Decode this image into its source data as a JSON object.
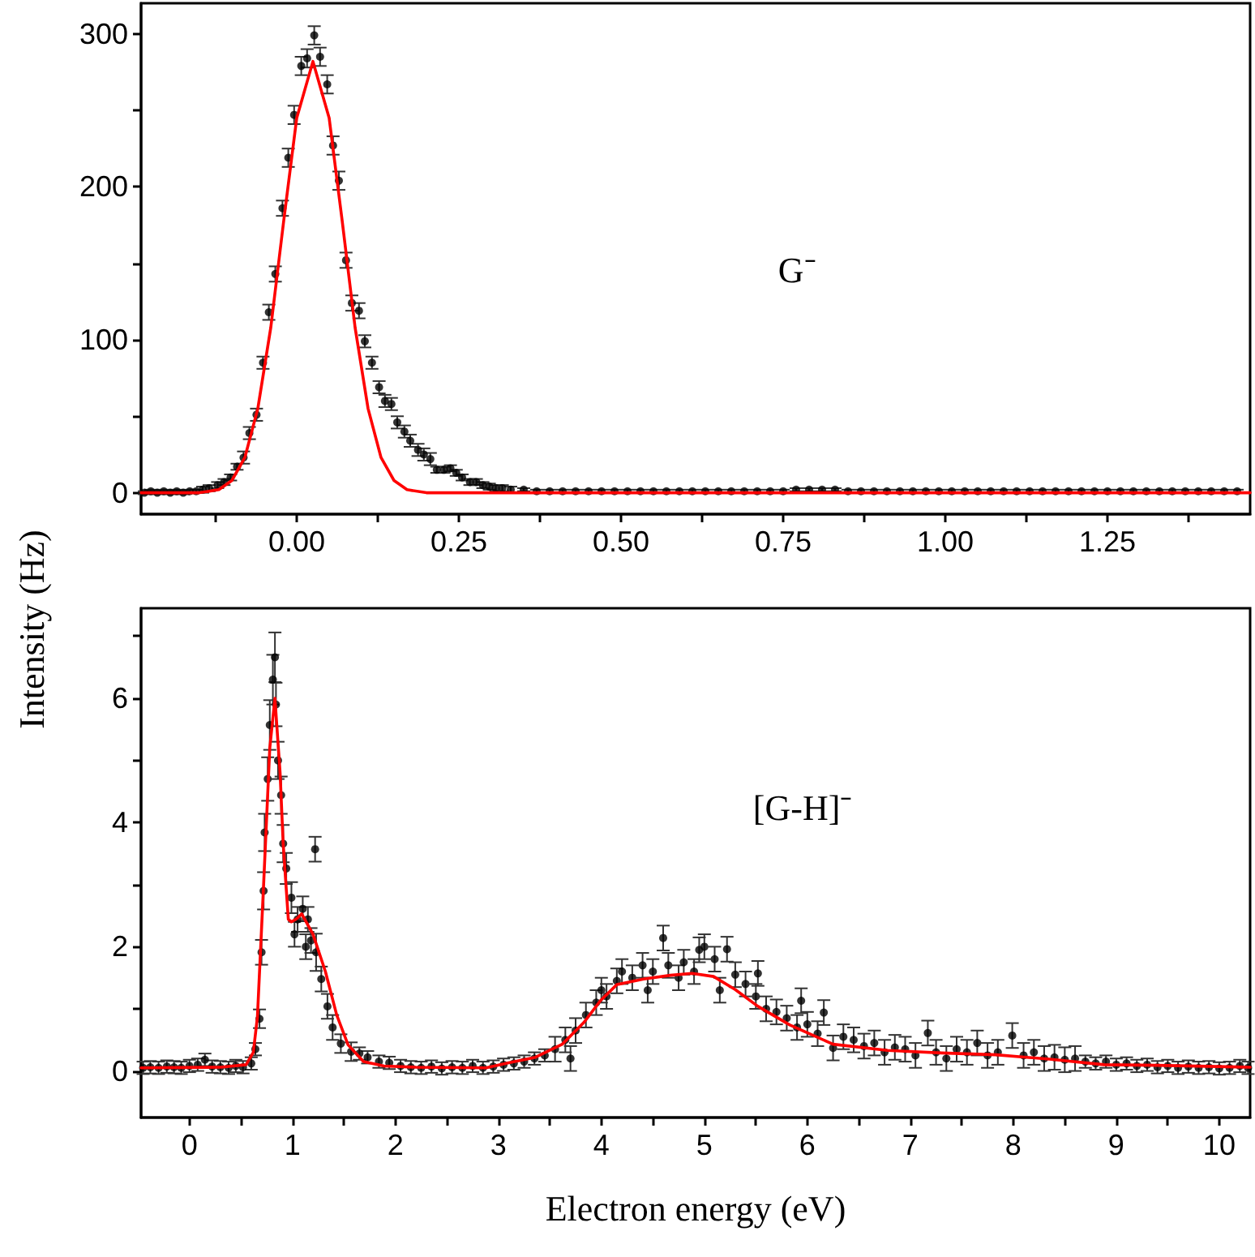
{
  "chart_data": [
    {
      "type": "scatter",
      "ylabel": "Intensity (Hz)",
      "annotations": [
        "G⁻"
      ],
      "xlim": [
        -0.24,
        1.47
      ],
      "ylim": [
        -14,
        320
      ],
      "xticks": [
        {
          "value": -0.125,
          "label": null
        },
        {
          "value": 0,
          "label": "0.00"
        },
        {
          "value": 0.125,
          "label": null
        },
        {
          "value": 0.25,
          "label": "0.25"
        },
        {
          "value": 0.375,
          "label": null
        },
        {
          "value": 0.5,
          "label": "0.50"
        },
        {
          "value": 0.625,
          "label": null
        },
        {
          "value": 0.75,
          "label": "0.75"
        },
        {
          "value": 0.875,
          "label": null
        },
        {
          "value": 1,
          "label": "1.00"
        },
        {
          "value": 1.125,
          "label": null
        },
        {
          "value": 1.25,
          "label": "1.25"
        },
        {
          "value": 1.375,
          "label": null
        }
      ],
      "yticks": [
        0,
        {
          "value": 50,
          "label": null
        },
        100,
        {
          "value": 150,
          "label": null
        },
        200,
        {
          "value": 250,
          "label": null
        },
        300
      ],
      "grid": false,
      "series": [
        {
          "type": "scatter",
          "marker": "circle",
          "color": "#000000",
          "x": [
            -0.235,
            -0.225,
            -0.215,
            -0.205,
            -0.195,
            -0.185,
            -0.175,
            -0.165,
            -0.155,
            -0.145,
            -0.135,
            -0.122,
            -0.112,
            -0.102,
            -0.092,
            -0.082,
            -0.073,
            -0.062,
            -0.052,
            -0.043,
            -0.033,
            -0.022,
            -0.013,
            -0.004,
            0.007,
            0.016,
            0.027,
            0.036,
            0.047,
            0.056,
            0.065,
            0.076,
            0.085,
            0.096,
            0.105,
            0.116,
            0.127,
            0.136,
            0.146,
            0.155,
            0.166,
            0.175,
            0.187,
            0.196,
            0.206,
            0.216,
            0.227,
            0.237,
            0.246,
            0.255,
            0.267,
            0.277,
            0.287,
            0.297,
            0.307,
            0.317,
            0.33,
            0.35,
            0.37,
            0.39,
            0.41,
            0.43,
            0.45,
            0.47,
            0.49,
            0.51,
            0.53,
            0.55,
            0.57,
            0.59,
            0.61,
            0.63,
            0.65,
            0.67,
            0.69,
            0.71,
            0.73,
            0.75,
            0.77,
            0.79,
            0.81,
            0.83,
            0.85,
            0.87,
            0.89,
            0.91,
            0.93,
            0.95,
            0.97,
            0.99,
            1.01,
            1.03,
            1.05,
            1.07,
            1.09,
            1.11,
            1.13,
            1.15,
            1.17,
            1.19,
            1.21,
            1.23,
            1.25,
            1.27,
            1.29,
            1.31,
            1.33,
            1.35,
            1.37,
            1.39,
            1.41,
            1.43,
            1.45
          ],
          "values": [
            0,
            1,
            0,
            1,
            0,
            1,
            0,
            1,
            1,
            2,
            3,
            5,
            7,
            10,
            17,
            23,
            39,
            51,
            85,
            118,
            143,
            186,
            219,
            247,
            279,
            284,
            299,
            285,
            267,
            227,
            204,
            152,
            124,
            119,
            99,
            85,
            69,
            60,
            58,
            46,
            40,
            34,
            28,
            25,
            22,
            15,
            15,
            16,
            13,
            10,
            7,
            7,
            5,
            4,
            3,
            3,
            2,
            2,
            1,
            1,
            1,
            1,
            1,
            1,
            1,
            1,
            1,
            1,
            1,
            1,
            1,
            1,
            1,
            1,
            1,
            1,
            1,
            1,
            2,
            2,
            2,
            2,
            1,
            1,
            1,
            1,
            1,
            1,
            1,
            1,
            1,
            1,
            1,
            1,
            1,
            1,
            1,
            1,
            1,
            1,
            1,
            1,
            1,
            1,
            1,
            1,
            1,
            1,
            1,
            1,
            1,
            1,
            1
          ],
          "errors": [
            1,
            1,
            1,
            1,
            1,
            1,
            1,
            1,
            1,
            2,
            2,
            2,
            2,
            2,
            2,
            4,
            4,
            4,
            4,
            5,
            5,
            5,
            6,
            6,
            6,
            6,
            6,
            6,
            6,
            6,
            6,
            5,
            5,
            5,
            4,
            4,
            4,
            4,
            4,
            4,
            4,
            4,
            4,
            4,
            4,
            2,
            2,
            2,
            2,
            2,
            2,
            2,
            2,
            2,
            2,
            2,
            2,
            1,
            1,
            1,
            1,
            1,
            1,
            1,
            1,
            1,
            1,
            1,
            1,
            1,
            1,
            1,
            1,
            1,
            1,
            1,
            1,
            1,
            1,
            1,
            1,
            1,
            1,
            1,
            1,
            1,
            1,
            1,
            1,
            1,
            1,
            1,
            1,
            1,
            1,
            1,
            1,
            1,
            1,
            1,
            1,
            1,
            1,
            1,
            1,
            1,
            1,
            1,
            1,
            1,
            1,
            1,
            1
          ]
        },
        {
          "type": "line",
          "color": "#ff0000",
          "line_style": "solid",
          "x": [
            -0.24,
            -0.2,
            -0.15,
            -0.12,
            -0.1,
            -0.08,
            -0.06,
            -0.04,
            -0.02,
            0,
            0.025,
            0.05,
            0.07,
            0.09,
            0.11,
            0.13,
            0.15,
            0.17,
            0.2,
            0.3,
            0.6,
            1.0,
            1.47
          ],
          "values": [
            0,
            0,
            0,
            2,
            8,
            23,
            55,
            108,
            178,
            245,
            282,
            245,
            178,
            108,
            55,
            23,
            8,
            2,
            0,
            0,
            0,
            0,
            0
          ]
        }
      ]
    },
    {
      "type": "scatter",
      "xlabel": "Electron energy (eV)",
      "annotations": [
        "[G-H]⁻"
      ],
      "xlim": [
        -0.47,
        10.3
      ],
      "ylim": [
        -0.75,
        7.45
      ],
      "xticks": [
        0,
        {
          "value": 0.5,
          "label": null
        },
        1,
        {
          "value": 1.5,
          "label": null
        },
        2,
        {
          "value": 2.5,
          "label": null
        },
        3,
        {
          "value": 3.5,
          "label": null
        },
        4,
        {
          "value": 4.5,
          "label": null
        },
        5,
        {
          "value": 5.5,
          "label": null
        },
        6,
        {
          "value": 6.5,
          "label": null
        },
        7,
        {
          "value": 7.5,
          "label": null
        },
        8,
        {
          "value": 8.5,
          "label": null
        },
        9,
        {
          "value": 9.5,
          "label": null
        },
        10
      ],
      "yticks": [
        0,
        {
          "value": 1,
          "label": null
        },
        2,
        {
          "value": 3,
          "label": null
        },
        4,
        {
          "value": 5,
          "label": null
        },
        6,
        {
          "value": 7,
          "label": null
        }
      ],
      "grid": false,
      "series": [
        {
          "type": "scatter",
          "marker": "circle",
          "color": "#000000",
          "x": [
            -0.45,
            -0.38,
            -0.3,
            -0.22,
            -0.15,
            -0.08,
            0,
            0.08,
            0.15,
            0.22,
            0.3,
            0.38,
            0.45,
            0.52,
            0.6,
            0.64,
            0.68,
            0.7,
            0.72,
            0.73,
            0.76,
            0.78,
            0.81,
            0.83,
            0.84,
            0.86,
            0.89,
            0.91,
            0.94,
            0.99,
            1.02,
            1.05,
            1.1,
            1.13,
            1.15,
            1.18,
            1.22,
            1.23,
            1.28,
            1.34,
            1.39,
            1.47,
            1.57,
            1.65,
            1.73,
            1.84,
            1.94,
            2.05,
            2.15,
            2.25,
            2.35,
            2.45,
            2.55,
            2.65,
            2.75,
            2.85,
            2.95,
            3.05,
            3.15,
            3.25,
            3.35,
            3.45,
            3.55,
            3.65,
            3.7,
            3.75,
            3.85,
            3.95,
            4.0,
            4.05,
            4.15,
            4.2,
            4.3,
            4.4,
            4.45,
            4.5,
            4.6,
            4.65,
            4.75,
            4.8,
            4.9,
            4.95,
            5.0,
            5.1,
            5.15,
            5.22,
            5.3,
            5.4,
            5.5,
            5.52,
            5.6,
            5.7,
            5.8,
            5.9,
            5.94,
            6.0,
            6.1,
            6.16,
            6.25,
            6.35,
            6.45,
            6.55,
            6.65,
            6.75,
            6.85,
            6.95,
            7.05,
            7.17,
            7.25,
            7.35,
            7.45,
            7.55,
            7.65,
            7.75,
            7.85,
            7.99,
            8.1,
            8.2,
            8.3,
            8.4,
            8.5,
            8.6,
            8.7,
            8.8,
            8.9,
            9.0,
            9.1,
            9.2,
            9.3,
            9.4,
            9.5,
            9.6,
            9.7,
            9.8,
            9.9,
            10.0,
            10.1,
            10.2,
            10.28
          ],
          "values": [
            0.05,
            0.06,
            0.05,
            0.07,
            0.06,
            0.05,
            0.08,
            0.1,
            0.18,
            0.07,
            0.06,
            0.05,
            0.08,
            0.06,
            0.12,
            0.35,
            0.84,
            1.91,
            2.9,
            3.84,
            4.7,
            5.57,
            6.3,
            6.66,
            5.9,
            5.0,
            4.44,
            3.66,
            3.26,
            2.79,
            2.2,
            2.44,
            2.61,
            2.0,
            2.44,
            2.1,
            3.57,
            1.91,
            1.48,
            1.04,
            0.7,
            0.44,
            0.31,
            0.28,
            0.22,
            0.15,
            0.13,
            0.08,
            0.06,
            0.05,
            0.07,
            0.04,
            0.06,
            0.05,
            0.08,
            0.05,
            0.07,
            0.1,
            0.12,
            0.15,
            0.2,
            0.25,
            0.35,
            0.5,
            0.2,
            0.65,
            0.9,
            1.1,
            1.3,
            1.2,
            1.45,
            1.6,
            1.5,
            1.7,
            1.3,
            1.6,
            2.14,
            1.7,
            1.5,
            1.75,
            1.6,
            1.95,
            2.0,
            1.8,
            1.3,
            1.96,
            1.55,
            1.4,
            1.2,
            1.57,
            1.0,
            0.95,
            0.85,
            0.7,
            1.13,
            0.75,
            0.6,
            0.94,
            0.37,
            0.55,
            0.5,
            0.4,
            0.45,
            0.3,
            0.38,
            0.35,
            0.25,
            0.61,
            0.3,
            0.2,
            0.35,
            0.3,
            0.45,
            0.25,
            0.3,
            0.57,
            0.25,
            0.3,
            0.2,
            0.22,
            0.18,
            0.2,
            0.15,
            0.12,
            0.15,
            0.1,
            0.12,
            0.08,
            0.1,
            0.06,
            0.08,
            0.05,
            0.07,
            0.05,
            0.06,
            0.04,
            0.05,
            0.08,
            0.05
          ],
          "errors": [
            0.1,
            0.1,
            0.1,
            0.1,
            0.1,
            0.1,
            0.1,
            0.1,
            0.1,
            0.1,
            0.1,
            0.1,
            0.1,
            0.1,
            0.1,
            0.1,
            0.15,
            0.2,
            0.3,
            0.3,
            0.35,
            0.4,
            0.4,
            0.4,
            0.35,
            0.3,
            0.3,
            0.3,
            0.25,
            0.25,
            0.2,
            0.2,
            0.2,
            0.2,
            0.2,
            0.2,
            0.2,
            0.3,
            0.2,
            0.2,
            0.2,
            0.15,
            0.15,
            0.1,
            0.1,
            0.1,
            0.1,
            0.1,
            0.1,
            0.1,
            0.1,
            0.1,
            0.1,
            0.1,
            0.1,
            0.1,
            0.1,
            0.1,
            0.1,
            0.1,
            0.1,
            0.1,
            0.2,
            0.2,
            0.2,
            0.2,
            0.2,
            0.2,
            0.2,
            0.2,
            0.2,
            0.2,
            0.2,
            0.2,
            0.2,
            0.2,
            0.2,
            0.2,
            0.2,
            0.2,
            0.2,
            0.2,
            0.2,
            0.2,
            0.2,
            0.2,
            0.2,
            0.2,
            0.2,
            0.2,
            0.2,
            0.2,
            0.2,
            0.2,
            0.2,
            0.2,
            0.2,
            0.2,
            0.2,
            0.2,
            0.2,
            0.2,
            0.2,
            0.2,
            0.2,
            0.2,
            0.2,
            0.2,
            0.2,
            0.2,
            0.2,
            0.2,
            0.2,
            0.2,
            0.2,
            0.2,
            0.2,
            0.2,
            0.2,
            0.2,
            0.2,
            0.2,
            0.1,
            0.1,
            0.1,
            0.1,
            0.1,
            0.1,
            0.1,
            0.1,
            0.1,
            0.1,
            0.1,
            0.1,
            0.1,
            0.1,
            0.1,
            0.1,
            0.1
          ]
        },
        {
          "type": "line",
          "color": "#ff0000",
          "line_style": "solid",
          "x": [
            -0.47,
            0.3,
            0.55,
            0.62,
            0.66,
            0.72,
            0.78,
            0.83,
            0.88,
            0.91,
            0.96,
            0.99,
            1.04,
            1.09,
            1.2,
            1.32,
            1.43,
            1.54,
            1.69,
            1.89,
            2.2,
            2.88,
            3.1,
            3.36,
            3.62,
            3.83,
            3.99,
            4.15,
            4.41,
            4.67,
            4.88,
            5.09,
            5.3,
            5.52,
            5.83,
            6.25,
            6.78,
            7.3,
            7.83,
            8.35,
            8.88,
            9.4,
            10.3
          ],
          "values": [
            0.05,
            0.06,
            0.1,
            0.3,
            0.87,
            3.0,
            5.2,
            6.0,
            4.8,
            3.66,
            2.44,
            2.4,
            2.45,
            2.53,
            2.2,
            1.6,
            0.9,
            0.42,
            0.15,
            0.08,
            0.06,
            0.05,
            0.13,
            0.22,
            0.43,
            0.78,
            1.13,
            1.39,
            1.48,
            1.54,
            1.57,
            1.52,
            1.31,
            1.04,
            0.74,
            0.43,
            0.33,
            0.29,
            0.26,
            0.19,
            0.1,
            0.09,
            0.06
          ]
        }
      ]
    }
  ]
}
